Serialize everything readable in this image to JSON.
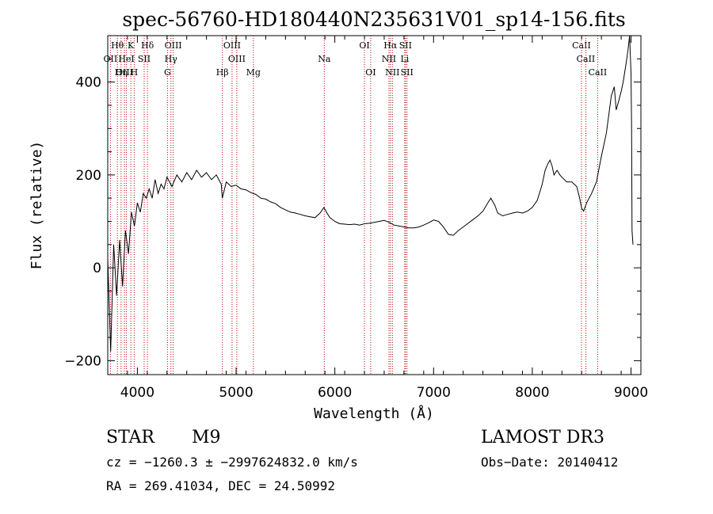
{
  "chart_data": {
    "type": "line",
    "title": "spec-56760-HD180440N235631V01_sp14-156.fits",
    "xlabel": "Wavelength (Å)",
    "ylabel": "Flux (relative)",
    "xlim": [
      3700,
      9100
    ],
    "ylim": [
      -230,
      500
    ],
    "x_ticks": [
      4000,
      5000,
      6000,
      7000,
      8000,
      9000
    ],
    "x_tick_labels": [
      "4000",
      "5000",
      "6000",
      "7000",
      "8000",
      "9000"
    ],
    "y_ticks": [
      -200,
      0,
      200,
      400
    ],
    "y_tick_labels": [
      "−200",
      "0",
      "200",
      "400"
    ],
    "grid": false,
    "series": [
      {
        "name": "flux",
        "x": [
          3700,
          3730,
          3760,
          3790,
          3820,
          3850,
          3880,
          3910,
          3940,
          3970,
          4000,
          4030,
          4060,
          4090,
          4120,
          4150,
          4180,
          4210,
          4240,
          4270,
          4300,
          4350,
          4400,
          4450,
          4500,
          4550,
          4600,
          4650,
          4700,
          4750,
          4800,
          4850,
          4860,
          4900,
          4950,
          5000,
          5050,
          5100,
          5150,
          5200,
          5250,
          5300,
          5350,
          5400,
          5450,
          5500,
          5550,
          5600,
          5650,
          5700,
          5750,
          5800,
          5850,
          5890,
          5920,
          5950,
          6000,
          6050,
          6100,
          6150,
          6200,
          6250,
          6300,
          6350,
          6400,
          6450,
          6500,
          6550,
          6600,
          6650,
          6700,
          6750,
          6800,
          6850,
          6900,
          6950,
          7000,
          7050,
          7100,
          7150,
          7200,
          7250,
          7300,
          7350,
          7400,
          7450,
          7500,
          7550,
          7580,
          7620,
          7650,
          7700,
          7750,
          7800,
          7850,
          7900,
          7950,
          8000,
          8050,
          8100,
          8130,
          8160,
          8180,
          8200,
          8220,
          8250,
          8280,
          8300,
          8350,
          8400,
          8450,
          8480,
          8500,
          8520,
          8550,
          8600,
          8650,
          8700,
          8750,
          8800,
          8830,
          8850,
          8870,
          8900,
          8920,
          8950,
          8970,
          8985,
          9000,
          9005,
          9010,
          9020
        ],
        "values": [
          20,
          -180,
          50,
          -60,
          60,
          -40,
          80,
          30,
          120,
          90,
          140,
          120,
          160,
          150,
          170,
          150,
          190,
          160,
          180,
          170,
          195,
          175,
          200,
          185,
          205,
          190,
          210,
          195,
          205,
          190,
          200,
          180,
          150,
          185,
          175,
          178,
          170,
          168,
          162,
          158,
          150,
          148,
          142,
          138,
          130,
          125,
          120,
          118,
          115,
          112,
          110,
          108,
          118,
          130,
          118,
          108,
          100,
          95,
          94,
          93,
          94,
          92,
          95,
          96,
          98,
          100,
          102,
          98,
          92,
          90,
          88,
          86,
          86,
          88,
          92,
          97,
          103,
          100,
          88,
          72,
          70,
          80,
          88,
          96,
          104,
          112,
          122,
          140,
          150,
          135,
          118,
          112,
          115,
          118,
          120,
          118,
          122,
          130,
          145,
          180,
          210,
          225,
          232,
          220,
          200,
          210,
          200,
          195,
          185,
          185,
          175,
          150,
          128,
          122,
          140,
          160,
          185,
          240,
          290,
          370,
          390,
          340,
          355,
          380,
          400,
          440,
          470,
          500,
          420,
          310,
          80,
          50
        ]
      }
    ],
    "line_marks": [
      {
        "label": "Hθ",
        "x": 3798,
        "row": 1
      },
      {
        "label": "OII",
        "x": 3727,
        "row": 2
      },
      {
        "label": "OIII",
        "x": 3869,
        "row": 3
      },
      {
        "label": "HeI",
        "x": 3889,
        "row": 2
      },
      {
        "label": "K",
        "x": 3934,
        "row": 1
      },
      {
        "label": "Hη",
        "x": 3835,
        "row": 3
      },
      {
        "label": "SII",
        "x": 4069,
        "row": 2
      },
      {
        "label": "Hδ",
        "x": 4102,
        "row": 1
      },
      {
        "label": "H",
        "x": 3968,
        "row": 3
      },
      {
        "label": "OIII",
        "x": 4363,
        "row": 1
      },
      {
        "label": "Hγ",
        "x": 4340,
        "row": 2
      },
      {
        "label": "G",
        "x": 4305,
        "row": 3
      },
      {
        "label": "OIII",
        "x": 4959,
        "row": 1
      },
      {
        "label": "OIII",
        "x": 5007,
        "row": 2
      },
      {
        "label": "Hβ",
        "x": 4861,
        "row": 3
      },
      {
        "label": "Mg",
        "x": 5175,
        "row": 3
      },
      {
        "label": "Na",
        "x": 5893,
        "row": 2
      },
      {
        "label": "OI",
        "x": 6300,
        "row": 1
      },
      {
        "label": "OI",
        "x": 6363,
        "row": 3
      },
      {
        "label": "Hα",
        "x": 6563,
        "row": 1
      },
      {
        "label": "SII",
        "x": 6716,
        "row": 1
      },
      {
        "label": "NII",
        "x": 6548,
        "row": 2
      },
      {
        "label": "Li",
        "x": 6708,
        "row": 2
      },
      {
        "label": "NII",
        "x": 6583,
        "row": 3
      },
      {
        "label": "SII",
        "x": 6731,
        "row": 3
      },
      {
        "label": "CaII",
        "x": 8498,
        "row": 1
      },
      {
        "label": "CaII",
        "x": 8542,
        "row": 2
      },
      {
        "label": "CaII",
        "x": 8662,
        "row": 3
      }
    ]
  },
  "info": {
    "object_class": "STAR",
    "subclass": "M9",
    "survey": "LAMOST DR3",
    "redshift": "cz = −1260.3 ± −2997624832.0 km/s",
    "obs_date": "Obs−Date: 20140412",
    "coords": "RA = 269.41034, DEC =  24.50992"
  }
}
